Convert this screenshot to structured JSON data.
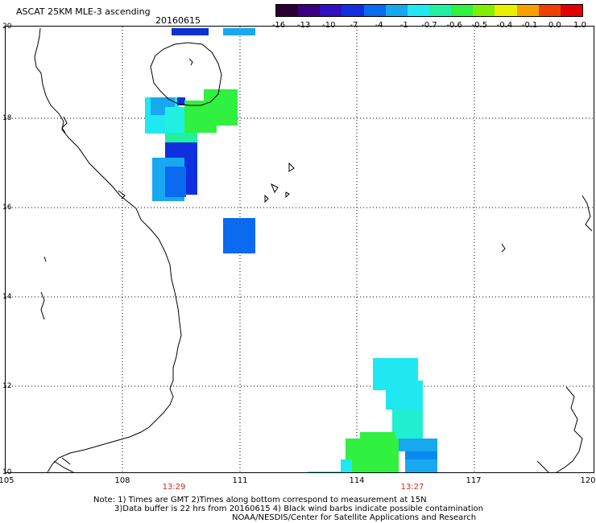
{
  "header": {
    "title": "ASCAT 25KM MLE-3 ascending",
    "date": "20160615"
  },
  "colorbar": {
    "labels": [
      "-16",
      "-13",
      "-10",
      "-7",
      "-4",
      "-1",
      "-0.7",
      "-0.6",
      "-0.5",
      "-0.4",
      "-0.1",
      "0.0",
      "1.0"
    ],
    "colors": [
      "#2a0030",
      "#3a0080",
      "#3010c0",
      "#1030e0",
      "#0a6af0",
      "#18a8f0",
      "#20e8f0",
      "#20f0a0",
      "#30f040",
      "#80f000",
      "#e8f000",
      "#f8a000",
      "#f04000",
      "#e00000"
    ]
  },
  "axes": {
    "lon_labels": [
      "105",
      "108",
      "111",
      "114",
      "117",
      "120"
    ],
    "lat_labels": [
      "20",
      "18",
      "16",
      "14",
      "12",
      "10"
    ]
  },
  "times": [
    "13:29",
    "13:27"
  ],
  "notes": [
    "Note: 1) Times are GMT 2)Times along bottom correspond to measurement at 15N",
    "3)Data buffer is 22 hrs from 20160615 4) Black wind barbs indicate possible contamination",
    "NOAA/NESDIS/Center for Satellite Applications and Research"
  ]
}
